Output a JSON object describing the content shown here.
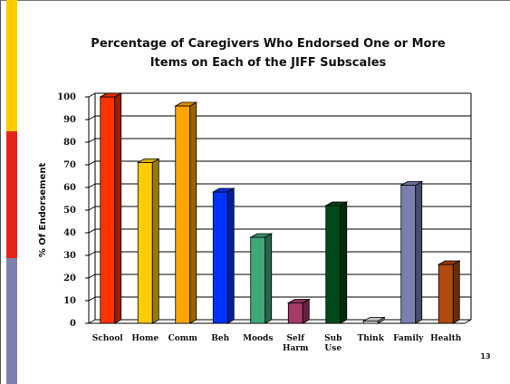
{
  "slide": {
    "number": "13",
    "stripe_colors": [
      "#FFCC00",
      "#E8231A",
      "#7F7FAF"
    ]
  },
  "chart_data": {
    "type": "bar",
    "title_lines": [
      "Percentage of Caregivers Who Endorsed One or More",
      "Items on Each of the JIFF Subscales"
    ],
    "title": "Percentage of Caregivers Who Endorsed One or More Items on Each of the JIFF Subscales",
    "xlabel": "",
    "ylabel": "% Of Endorsement",
    "ylim": [
      0,
      100
    ],
    "yticks": [
      0,
      10,
      20,
      30,
      40,
      50,
      60,
      70,
      80,
      90,
      100
    ],
    "grid": true,
    "legend": "none",
    "categories": [
      "School",
      "Home",
      "Comm",
      "Beh",
      "Moods",
      "Self Harm",
      "Sub Use",
      "Think",
      "Family",
      "Health"
    ],
    "category_label_lines": [
      [
        "School"
      ],
      [
        "Home"
      ],
      [
        "Comm"
      ],
      [
        "Beh"
      ],
      [
        "Moods"
      ],
      [
        "Self",
        "Harm"
      ],
      [
        "Sub",
        "Use"
      ],
      [
        "Think"
      ],
      [
        "Family"
      ],
      [
        "Health"
      ]
    ],
    "values": [
      100,
      71,
      96,
      58,
      38,
      9,
      52,
      1,
      61,
      26
    ],
    "colors": [
      "#FF3300",
      "#FFCC00",
      "#FFA500",
      "#0033FF",
      "#3FA87A",
      "#A83A6A",
      "#004A1A",
      "#DDDDDD",
      "#7A7FB0",
      "#B04A10"
    ]
  }
}
